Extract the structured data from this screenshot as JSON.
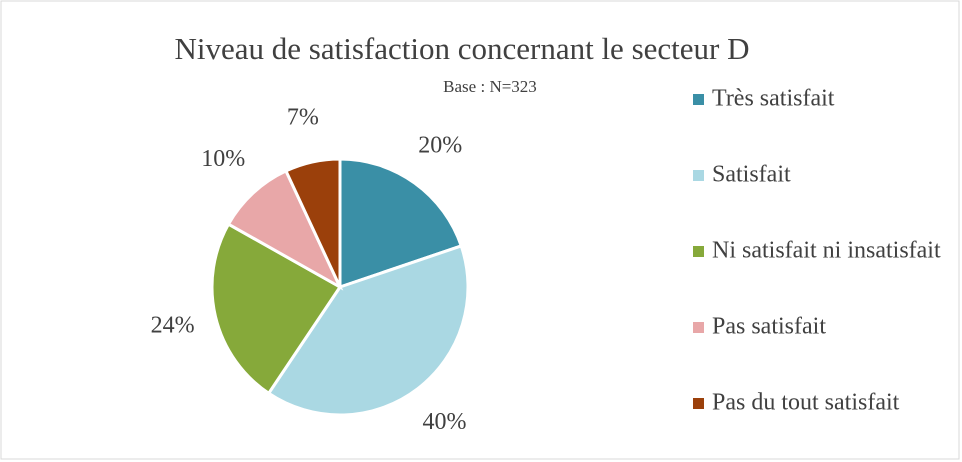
{
  "chart_data": {
    "type": "pie",
    "title": "Niveau de satisfaction concernant le secteur D",
    "subtitle": "Base : N=323",
    "categories": [
      "Très satisfait",
      "Satisfait",
      "Ni satisfait ni insatisfait",
      "Pas satisfait",
      "Pas du tout satisfait"
    ],
    "values": [
      20,
      40,
      24,
      10,
      7
    ],
    "value_labels": [
      "20%",
      "40%",
      "24%",
      "10%",
      "7%"
    ],
    "colors": [
      "#3a8fa6",
      "#aad8e3",
      "#86a93a",
      "#e8a7a8",
      "#9b400b"
    ],
    "legend": "right"
  }
}
